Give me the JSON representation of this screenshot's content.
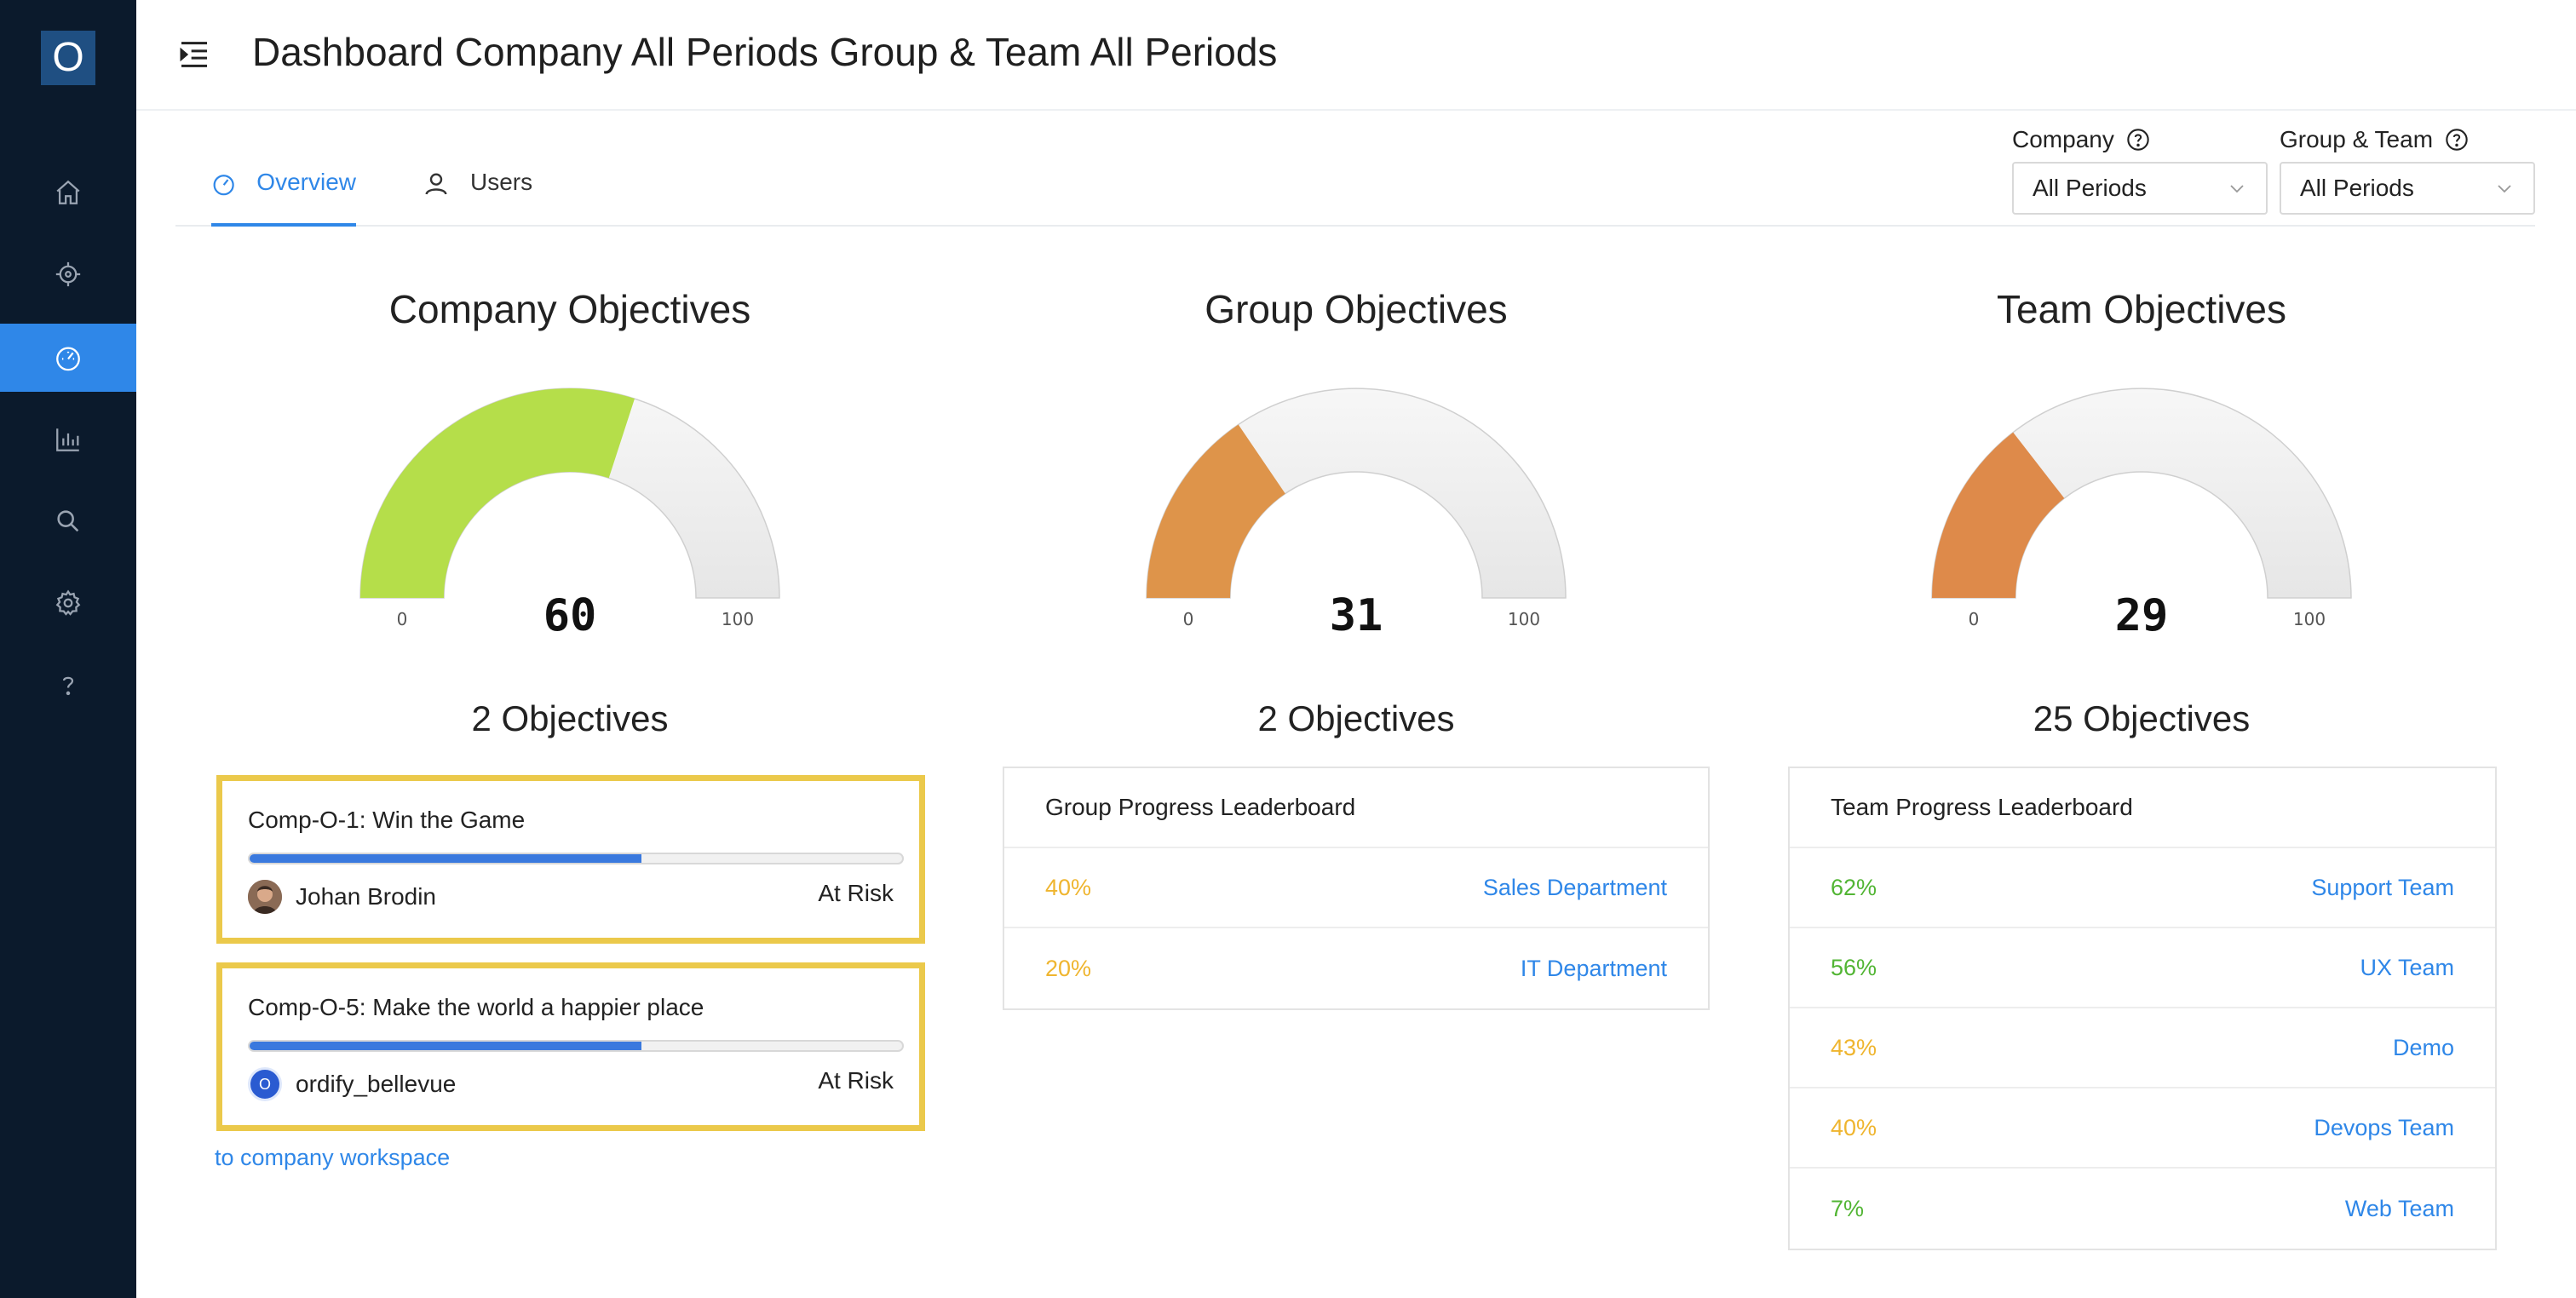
{
  "sidebar": {
    "logo": "O",
    "items": [
      {
        "name": "home-icon",
        "active": false
      },
      {
        "name": "target-icon",
        "active": false
      },
      {
        "name": "dashboard-icon",
        "active": true
      },
      {
        "name": "chart-icon",
        "active": false
      },
      {
        "name": "search-icon",
        "active": false
      },
      {
        "name": "gear-icon",
        "active": false
      },
      {
        "name": "help-icon",
        "active": false
      }
    ]
  },
  "header": {
    "title": "Dashboard Company All Periods Group & Team All Periods"
  },
  "tabs": [
    {
      "label": "Overview",
      "active": true
    },
    {
      "label": "Users",
      "active": false
    }
  ],
  "filters": {
    "company": {
      "label": "Company",
      "value": "All Periods"
    },
    "group_team": {
      "label": "Group & Team",
      "value": "All Periods"
    }
  },
  "gauges": [
    {
      "title": "Company Objectives",
      "value": 60,
      "min": "0",
      "max": "100",
      "color": "#b5de4a",
      "count_label": "2 Objectives"
    },
    {
      "title": "Group Objectives",
      "value": 31,
      "min": "0",
      "max": "100",
      "color": "#de944a",
      "count_label": "2 Objectives"
    },
    {
      "title": "Team Objectives",
      "value": 29,
      "min": "0",
      "max": "100",
      "color": "#de8a4a",
      "count_label": "25 Objectives"
    }
  ],
  "company_objectives": [
    {
      "title": "Comp-O-1: Win the Game",
      "progress": 0.6,
      "owner": "Johan Brodin",
      "avatar": "photo",
      "status": "At Risk"
    },
    {
      "title": "Comp-O-5: Make the world a happier place",
      "progress": 0.6,
      "owner": "ordify_bellevue",
      "avatar_letter": "O",
      "status": "At Risk"
    }
  ],
  "workspace_link": "to company workspace",
  "group_board": {
    "title": "Group Progress Leaderboard",
    "rows": [
      {
        "pct": "40%",
        "name": "Sales Department",
        "tone": "orange"
      },
      {
        "pct": "20%",
        "name": "IT Department",
        "tone": "orange"
      }
    ]
  },
  "team_board": {
    "title": "Team Progress Leaderboard",
    "rows": [
      {
        "pct": "62%",
        "name": "Support Team",
        "tone": "green"
      },
      {
        "pct": "56%",
        "name": "UX Team",
        "tone": "green"
      },
      {
        "pct": "43%",
        "name": "Demo",
        "tone": "orange"
      },
      {
        "pct": "40%",
        "name": "Devops Team",
        "tone": "orange"
      },
      {
        "pct": "7%",
        "name": "Web Team",
        "tone": "green"
      }
    ]
  }
}
